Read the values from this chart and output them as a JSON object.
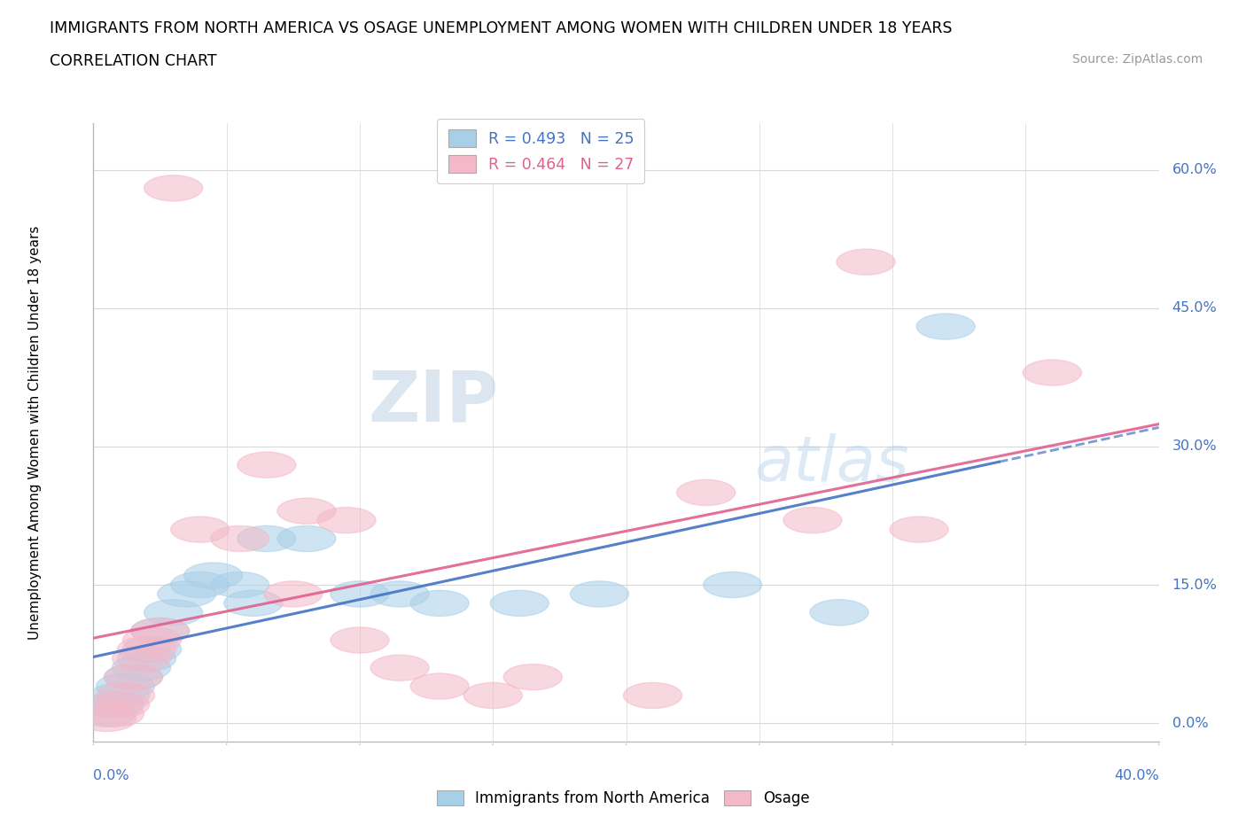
{
  "title": "IMMIGRANTS FROM NORTH AMERICA VS OSAGE UNEMPLOYMENT AMONG WOMEN WITH CHILDREN UNDER 18 YEARS",
  "subtitle": "CORRELATION CHART",
  "source": "Source: ZipAtlas.com",
  "xlabel_bottom_left": "0.0%",
  "xlabel_bottom_right": "40.0%",
  "ylabel": "Unemployment Among Women with Children Under 18 years",
  "ytick_labels": [
    "60.0%",
    "45.0%",
    "30.0%",
    "15.0%",
    "0.0%"
  ],
  "ytick_values": [
    0.6,
    0.45,
    0.3,
    0.15,
    0.0
  ],
  "xlim": [
    0.0,
    0.4
  ],
  "ylim": [
    -0.02,
    0.65
  ],
  "legend_r1": "R = 0.493   N = 25",
  "legend_r2": "R = 0.464   N = 27",
  "blue_color": "#a8cfe8",
  "pink_color": "#f4b8c8",
  "blue_line_color": "#4472c4",
  "pink_line_color": "#e06090",
  "blue_text_color": "#4472c4",
  "pink_text_color": "#e06090",
  "watermark_color": "#c8dff0",
  "watermark": "ZIPatlas",
  "grid_color": "#d8d8d8",
  "blue_scatter": [
    [
      0.005,
      0.01
    ],
    [
      0.008,
      0.02
    ],
    [
      0.01,
      0.03
    ],
    [
      0.012,
      0.04
    ],
    [
      0.015,
      0.05
    ],
    [
      0.018,
      0.06
    ],
    [
      0.02,
      0.07
    ],
    [
      0.022,
      0.08
    ],
    [
      0.025,
      0.1
    ],
    [
      0.03,
      0.12
    ],
    [
      0.035,
      0.14
    ],
    [
      0.04,
      0.15
    ],
    [
      0.045,
      0.16
    ],
    [
      0.055,
      0.15
    ],
    [
      0.06,
      0.13
    ],
    [
      0.065,
      0.2
    ],
    [
      0.08,
      0.2
    ],
    [
      0.1,
      0.14
    ],
    [
      0.115,
      0.14
    ],
    [
      0.13,
      0.13
    ],
    [
      0.16,
      0.13
    ],
    [
      0.19,
      0.14
    ],
    [
      0.24,
      0.15
    ],
    [
      0.28,
      0.12
    ],
    [
      0.32,
      0.43
    ]
  ],
  "pink_scatter": [
    [
      0.005,
      0.005
    ],
    [
      0.008,
      0.01
    ],
    [
      0.01,
      0.02
    ],
    [
      0.012,
      0.03
    ],
    [
      0.015,
      0.05
    ],
    [
      0.018,
      0.07
    ],
    [
      0.02,
      0.08
    ],
    [
      0.022,
      0.09
    ],
    [
      0.025,
      0.1
    ],
    [
      0.03,
      0.58
    ],
    [
      0.04,
      0.21
    ],
    [
      0.055,
      0.2
    ],
    [
      0.065,
      0.28
    ],
    [
      0.075,
      0.14
    ],
    [
      0.08,
      0.23
    ],
    [
      0.095,
      0.22
    ],
    [
      0.1,
      0.09
    ],
    [
      0.115,
      0.06
    ],
    [
      0.13,
      0.04
    ],
    [
      0.15,
      0.03
    ],
    [
      0.165,
      0.05
    ],
    [
      0.21,
      0.03
    ],
    [
      0.23,
      0.25
    ],
    [
      0.27,
      0.22
    ],
    [
      0.29,
      0.5
    ],
    [
      0.31,
      0.21
    ],
    [
      0.36,
      0.38
    ]
  ]
}
